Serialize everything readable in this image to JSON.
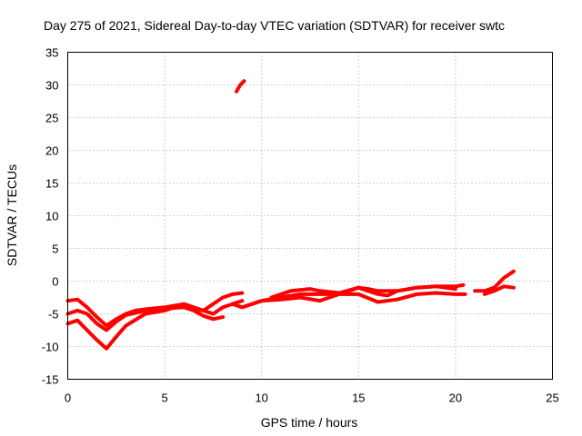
{
  "chart_data": {
    "type": "line",
    "title": "Day 275 of 2021, Sidereal Day-to-day VTEC variation (SDTVAR) for receiver swtc",
    "xlabel": "GPS time / hours",
    "ylabel": "SDTVAR / TECUs",
    "xlim": [
      0,
      25
    ],
    "ylim": [
      -15,
      35
    ],
    "xticks": [
      0,
      5,
      10,
      15,
      20,
      25
    ],
    "yticks": [
      -15,
      -10,
      -5,
      0,
      5,
      10,
      15,
      20,
      25,
      30,
      35
    ],
    "xtick_labels": [
      "0",
      "5",
      "10",
      "15",
      "20",
      "25"
    ],
    "ytick_labels": [
      "-15",
      "-10",
      "-5",
      "0",
      "5",
      "10",
      "15",
      "20",
      "25",
      "30",
      "35"
    ],
    "grid": true,
    "series_color": "#ff0000",
    "series": [
      {
        "name": "track-1",
        "x": [
          0,
          0.5,
          1.0,
          1.5,
          2.0,
          2.5,
          3.0,
          3.5,
          4.0,
          5.0,
          6.0,
          6.5,
          7.0,
          7.5,
          8.0,
          8.5,
          9.0
        ],
        "y": [
          -3.0,
          -2.8,
          -4.0,
          -5.5,
          -6.8,
          -5.8,
          -5.0,
          -4.5,
          -4.3,
          -4.0,
          -3.5,
          -4.0,
          -4.5,
          -3.5,
          -2.5,
          -2.0,
          -1.8
        ]
      },
      {
        "name": "track-2",
        "x": [
          0,
          0.5,
          1.0,
          1.5,
          2.0,
          2.5,
          3.0,
          4.0,
          5.0,
          6.0,
          7.0,
          7.5,
          8.0,
          8.5,
          9.0
        ],
        "y": [
          -5.0,
          -4.5,
          -5.0,
          -6.5,
          -7.5,
          -6.2,
          -5.2,
          -4.5,
          -4.2,
          -4.0,
          -4.5,
          -5.0,
          -4.0,
          -3.5,
          -3.0
        ]
      },
      {
        "name": "track-3",
        "x": [
          0,
          0.5,
          1.0,
          1.5,
          2.0,
          2.5,
          3.0,
          4.0,
          5.0,
          5.5,
          6.0,
          6.5,
          7.0,
          7.5,
          8.0
        ],
        "y": [
          -6.5,
          -6.0,
          -7.5,
          -9.0,
          -10.3,
          -8.5,
          -6.8,
          -5.0,
          -4.5,
          -4.0,
          -4.0,
          -4.5,
          -5.3,
          -5.8,
          -5.5
        ]
      },
      {
        "name": "track-4",
        "x": [
          8.5,
          9.0,
          10.0,
          11.0,
          12.0,
          13.0,
          14.0,
          15.0,
          15.5,
          16.0,
          17.0,
          18.0,
          19.0,
          20.0,
          20.4
        ],
        "y": [
          -3.5,
          -4.0,
          -3.0,
          -2.5,
          -2.0,
          -2.0,
          -2.0,
          -1.0,
          -1.2,
          -1.5,
          -1.5,
          -1.0,
          -0.8,
          -0.8,
          -0.6
        ]
      },
      {
        "name": "track-5",
        "x": [
          9.5,
          10.0,
          11.0,
          12.0,
          13.0,
          14.0,
          15.0,
          16.0,
          17.0,
          18.0,
          19.0,
          20.0,
          20.5
        ],
        "y": [
          -3.5,
          -3.0,
          -2.8,
          -2.5,
          -3.0,
          -2.0,
          -2.0,
          -3.2,
          -2.8,
          -2.0,
          -1.8,
          -2.0,
          -2.0
        ]
      },
      {
        "name": "track-6",
        "x": [
          10.5,
          11.5,
          12.5,
          13.0,
          14.0,
          15.0,
          15.5,
          16.0,
          16.5,
          17.0,
          18.0,
          19.0,
          20.0
        ],
        "y": [
          -2.5,
          -1.5,
          -1.2,
          -1.5,
          -1.8,
          -1.0,
          -1.5,
          -2.0,
          -2.2,
          -1.5,
          -1.0,
          -0.8,
          -1.2
        ]
      },
      {
        "name": "track-7",
        "x": [
          21.0,
          21.5,
          22.0,
          22.5,
          23.0
        ],
        "y": [
          -1.5,
          -1.5,
          -1.0,
          0.5,
          1.5
        ]
      },
      {
        "name": "track-8",
        "x": [
          21.5,
          22.0,
          22.5,
          23.0
        ],
        "y": [
          -2.0,
          -1.5,
          -0.8,
          -1.0
        ]
      },
      {
        "name": "track-9",
        "x": [
          8.7,
          8.9,
          9.1
        ],
        "y": [
          29.0,
          30.0,
          30.6
        ]
      }
    ]
  }
}
